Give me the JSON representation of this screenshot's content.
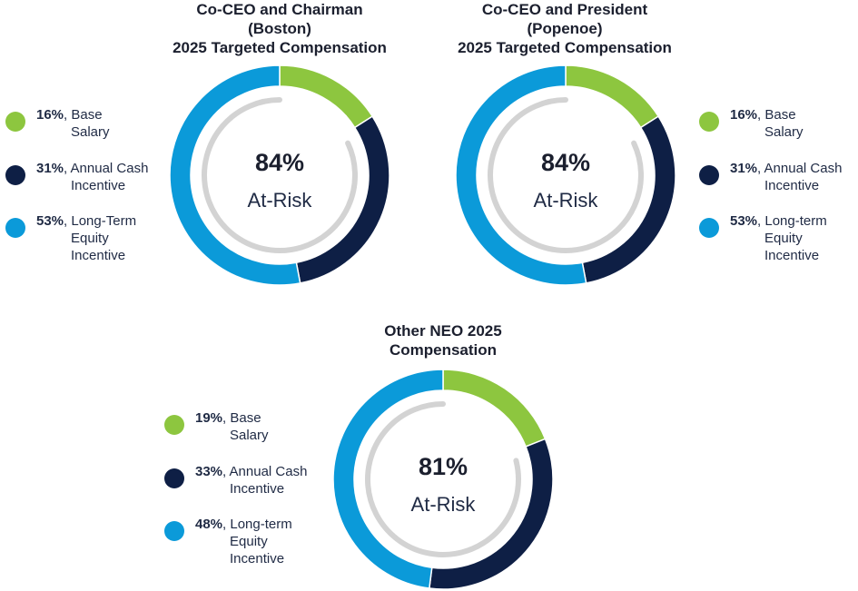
{
  "colors": {
    "base_salary": "#8dc63f",
    "annual_cash": "#0e1f45",
    "long_term": "#0b9ad9",
    "inner_ring": "#d3d3d3"
  },
  "chart_data": [
    {
      "type": "pie",
      "title_lines": [
        "Co-CEO and Chairman",
        "(Boston)",
        "2025 Targeted Compensation"
      ],
      "center_value": "84%",
      "center_label": "At-Risk",
      "slices": [
        {
          "name": "Base Salary",
          "value": 16,
          "pct_label": "16%",
          "lines": [
            ", Base",
            "Salary"
          ],
          "color_key": "base_salary"
        },
        {
          "name": "Annual Cash Incentive",
          "value": 31,
          "pct_label": "31%",
          "lines": [
            ", Annual Cash",
            "Incentive"
          ],
          "color_key": "annual_cash"
        },
        {
          "name": "Long-Term Equity Incentive",
          "value": 53,
          "pct_label": "53%",
          "lines": [
            ", Long-Term",
            "Equity",
            "Incentive"
          ],
          "color_key": "long_term"
        }
      ]
    },
    {
      "type": "pie",
      "title_lines": [
        "Co-CEO and President",
        "(Popenoe)",
        "2025 Targeted Compensation"
      ],
      "center_value": "84%",
      "center_label": "At-Risk",
      "slices": [
        {
          "name": "Base Salary",
          "value": 16,
          "pct_label": "16%",
          "lines": [
            ", Base",
            "Salary"
          ],
          "color_key": "base_salary"
        },
        {
          "name": "Annual Cash Incentive",
          "value": 31,
          "pct_label": "31%",
          "lines": [
            ", Annual Cash",
            "Incentive"
          ],
          "color_key": "annual_cash"
        },
        {
          "name": "Long-term Equity Incentive",
          "value": 53,
          "pct_label": "53%",
          "lines": [
            ", Long-term",
            "Equity",
            "Incentive"
          ],
          "color_key": "long_term"
        }
      ]
    },
    {
      "type": "pie",
      "title_lines": [
        "Other NEO 2025",
        "Compensation"
      ],
      "center_value": "81%",
      "center_label": "At-Risk",
      "slices": [
        {
          "name": "Base Salary",
          "value": 19,
          "pct_label": "19%",
          "lines": [
            ", Base",
            "Salary"
          ],
          "color_key": "base_salary"
        },
        {
          "name": "Annual Cash Incentive",
          "value": 33,
          "pct_label": "33%",
          "lines": [
            ", Annual Cash",
            "Incentive"
          ],
          "color_key": "annual_cash"
        },
        {
          "name": "Long-term Equity Incentive",
          "value": 48,
          "pct_label": "48%",
          "lines": [
            ", Long-term",
            "Equity",
            "Incentive"
          ],
          "color_key": "long_term"
        }
      ]
    }
  ]
}
